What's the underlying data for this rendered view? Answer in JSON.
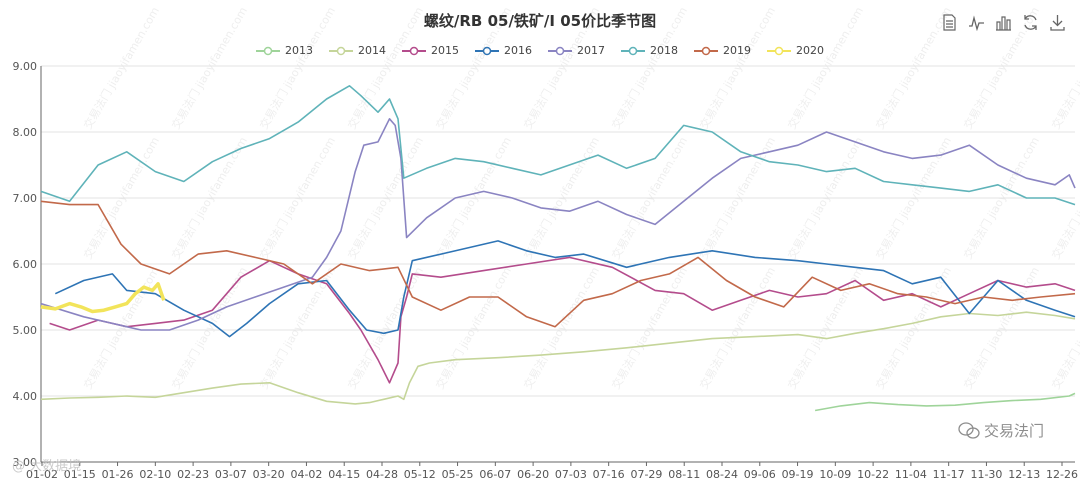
{
  "chart_data": {
    "type": "line",
    "title": "螺纹/RB 05/铁矿/I 05价比季节图",
    "xlabel": "",
    "ylabel": "",
    "ylim": [
      3.0,
      9.0
    ],
    "yticks": [
      "3.00",
      "4.00",
      "5.00",
      "6.00",
      "7.00",
      "8.00",
      "9.00"
    ],
    "ytick_values": [
      3,
      4,
      5,
      6,
      7,
      8,
      9
    ],
    "xticks": [
      "01-02",
      "01-15",
      "01-26",
      "02-10",
      "02-23",
      "03-07",
      "03-20",
      "04-02",
      "04-15",
      "04-28",
      "05-12",
      "05-25",
      "06-07",
      "06-20",
      "07-03",
      "07-16",
      "07-29",
      "08-11",
      "08-24",
      "09-06",
      "09-19",
      "10-09",
      "10-22",
      "11-04",
      "11-17",
      "11-30",
      "12-13",
      "12-26"
    ],
    "grid": true,
    "legend_position": "top-center",
    "series": [
      {
        "name": "2013",
        "color": "#9fd49a",
        "points": [
          [
            271,
            3.78
          ],
          [
            280,
            3.85
          ],
          [
            290,
            3.9
          ],
          [
            300,
            3.87
          ],
          [
            310,
            3.85
          ],
          [
            320,
            3.86
          ],
          [
            330,
            3.9
          ],
          [
            340,
            3.93
          ],
          [
            350,
            3.95
          ],
          [
            360,
            4.0
          ],
          [
            362,
            4.04
          ]
        ]
      },
      {
        "name": "2014",
        "color": "#c5d59a",
        "points": [
          [
            0,
            3.95
          ],
          [
            10,
            3.97
          ],
          [
            20,
            3.98
          ],
          [
            30,
            4.0
          ],
          [
            40,
            3.98
          ],
          [
            50,
            4.05
          ],
          [
            60,
            4.12
          ],
          [
            70,
            4.18
          ],
          [
            80,
            4.2
          ],
          [
            90,
            4.05
          ],
          [
            100,
            3.92
          ],
          [
            110,
            3.88
          ],
          [
            115,
            3.9
          ],
          [
            120,
            3.95
          ],
          [
            125,
            4.0
          ],
          [
            127,
            3.95
          ],
          [
            129,
            4.2
          ],
          [
            132,
            4.45
          ],
          [
            136,
            4.5
          ],
          [
            145,
            4.55
          ],
          [
            160,
            4.58
          ],
          [
            175,
            4.62
          ],
          [
            190,
            4.67
          ],
          [
            205,
            4.73
          ],
          [
            220,
            4.8
          ],
          [
            235,
            4.87
          ],
          [
            250,
            4.9
          ],
          [
            265,
            4.93
          ],
          [
            275,
            4.87
          ],
          [
            285,
            4.95
          ],
          [
            295,
            5.02
          ],
          [
            305,
            5.1
          ],
          [
            315,
            5.2
          ],
          [
            325,
            5.25
          ],
          [
            335,
            5.22
          ],
          [
            345,
            5.27
          ],
          [
            355,
            5.22
          ],
          [
            362,
            5.17
          ]
        ]
      },
      {
        "name": "2015",
        "color": "#b44c8c",
        "points": [
          [
            3,
            5.1
          ],
          [
            10,
            5.0
          ],
          [
            20,
            5.15
          ],
          [
            30,
            5.05
          ],
          [
            40,
            5.1
          ],
          [
            50,
            5.15
          ],
          [
            60,
            5.3
          ],
          [
            70,
            5.8
          ],
          [
            80,
            6.05
          ],
          [
            90,
            5.85
          ],
          [
            100,
            5.7
          ],
          [
            108,
            5.25
          ],
          [
            112,
            5.0
          ],
          [
            118,
            4.55
          ],
          [
            122,
            4.2
          ],
          [
            125,
            4.5
          ],
          [
            126,
            5.2
          ],
          [
            128,
            5.5
          ],
          [
            130,
            5.85
          ],
          [
            140,
            5.8
          ],
          [
            155,
            5.9
          ],
          [
            170,
            6.0
          ],
          [
            185,
            6.1
          ],
          [
            200,
            5.95
          ],
          [
            215,
            5.6
          ],
          [
            225,
            5.55
          ],
          [
            235,
            5.3
          ],
          [
            245,
            5.45
          ],
          [
            255,
            5.6
          ],
          [
            265,
            5.5
          ],
          [
            275,
            5.55
          ],
          [
            285,
            5.75
          ],
          [
            295,
            5.45
          ],
          [
            305,
            5.55
          ],
          [
            315,
            5.35
          ],
          [
            325,
            5.55
          ],
          [
            335,
            5.75
          ],
          [
            345,
            5.65
          ],
          [
            355,
            5.7
          ],
          [
            362,
            5.6
          ]
        ]
      },
      {
        "name": "2016",
        "color": "#2e74b5",
        "points": [
          [
            5,
            5.55
          ],
          [
            15,
            5.75
          ],
          [
            25,
            5.85
          ],
          [
            30,
            5.6
          ],
          [
            40,
            5.55
          ],
          [
            50,
            5.3
          ],
          [
            60,
            5.1
          ],
          [
            66,
            4.9
          ],
          [
            72,
            5.1
          ],
          [
            80,
            5.4
          ],
          [
            90,
            5.7
          ],
          [
            100,
            5.75
          ],
          [
            108,
            5.3
          ],
          [
            114,
            5.0
          ],
          [
            120,
            4.95
          ],
          [
            125,
            5.0
          ],
          [
            127,
            5.5
          ],
          [
            130,
            6.05
          ],
          [
            140,
            6.15
          ],
          [
            150,
            6.25
          ],
          [
            160,
            6.35
          ],
          [
            170,
            6.2
          ],
          [
            180,
            6.1
          ],
          [
            190,
            6.15
          ],
          [
            205,
            5.95
          ],
          [
            220,
            6.1
          ],
          [
            235,
            6.2
          ],
          [
            250,
            6.1
          ],
          [
            265,
            6.05
          ],
          [
            275,
            6.0
          ],
          [
            285,
            5.95
          ],
          [
            295,
            5.9
          ],
          [
            305,
            5.7
          ],
          [
            315,
            5.8
          ],
          [
            325,
            5.25
          ],
          [
            335,
            5.75
          ],
          [
            345,
            5.45
          ],
          [
            355,
            5.3
          ],
          [
            362,
            5.2
          ]
        ]
      },
      {
        "name": "2017",
        "color": "#8a84c2",
        "points": [
          [
            0,
            5.4
          ],
          [
            15,
            5.2
          ],
          [
            25,
            5.1
          ],
          [
            35,
            5.0
          ],
          [
            45,
            5.0
          ],
          [
            55,
            5.15
          ],
          [
            65,
            5.35
          ],
          [
            75,
            5.5
          ],
          [
            85,
            5.65
          ],
          [
            95,
            5.8
          ],
          [
            100,
            6.1
          ],
          [
            105,
            6.5
          ],
          [
            110,
            7.4
          ],
          [
            113,
            7.8
          ],
          [
            118,
            7.85
          ],
          [
            122,
            8.2
          ],
          [
            124,
            8.1
          ],
          [
            126,
            7.6
          ],
          [
            128,
            6.4
          ],
          [
            135,
            6.7
          ],
          [
            145,
            7.0
          ],
          [
            155,
            7.1
          ],
          [
            165,
            7.0
          ],
          [
            175,
            6.85
          ],
          [
            185,
            6.8
          ],
          [
            195,
            6.95
          ],
          [
            205,
            6.75
          ],
          [
            215,
            6.6
          ],
          [
            225,
            6.95
          ],
          [
            235,
            7.3
          ],
          [
            245,
            7.6
          ],
          [
            255,
            7.7
          ],
          [
            265,
            7.8
          ],
          [
            275,
            8.0
          ],
          [
            285,
            7.85
          ],
          [
            295,
            7.7
          ],
          [
            305,
            7.6
          ],
          [
            315,
            7.65
          ],
          [
            325,
            7.8
          ],
          [
            335,
            7.5
          ],
          [
            345,
            7.3
          ],
          [
            355,
            7.2
          ],
          [
            360,
            7.35
          ],
          [
            362,
            7.15
          ]
        ]
      },
      {
        "name": "2018",
        "color": "#5fb3b9",
        "points": [
          [
            0,
            7.1
          ],
          [
            10,
            6.95
          ],
          [
            20,
            7.5
          ],
          [
            30,
            7.7
          ],
          [
            40,
            7.4
          ],
          [
            50,
            7.25
          ],
          [
            60,
            7.55
          ],
          [
            70,
            7.75
          ],
          [
            80,
            7.9
          ],
          [
            90,
            8.15
          ],
          [
            100,
            8.5
          ],
          [
            108,
            8.7
          ],
          [
            112,
            8.55
          ],
          [
            118,
            8.3
          ],
          [
            122,
            8.5
          ],
          [
            125,
            8.2
          ],
          [
            127,
            7.3
          ],
          [
            135,
            7.45
          ],
          [
            145,
            7.6
          ],
          [
            155,
            7.55
          ],
          [
            165,
            7.45
          ],
          [
            175,
            7.35
          ],
          [
            185,
            7.5
          ],
          [
            195,
            7.65
          ],
          [
            205,
            7.45
          ],
          [
            215,
            7.6
          ],
          [
            225,
            8.1
          ],
          [
            235,
            8.0
          ],
          [
            245,
            7.7
          ],
          [
            255,
            7.55
          ],
          [
            265,
            7.5
          ],
          [
            275,
            7.4
          ],
          [
            285,
            7.45
          ],
          [
            295,
            7.25
          ],
          [
            305,
            7.2
          ],
          [
            315,
            7.15
          ],
          [
            325,
            7.1
          ],
          [
            335,
            7.2
          ],
          [
            345,
            7.0
          ],
          [
            355,
            7.0
          ],
          [
            362,
            6.9
          ]
        ]
      },
      {
        "name": "2019",
        "color": "#c2694a",
        "points": [
          [
            0,
            6.95
          ],
          [
            10,
            6.9
          ],
          [
            20,
            6.9
          ],
          [
            28,
            6.3
          ],
          [
            35,
            6.0
          ],
          [
            45,
            5.85
          ],
          [
            55,
            6.15
          ],
          [
            65,
            6.2
          ],
          [
            75,
            6.1
          ],
          [
            85,
            6.0
          ],
          [
            95,
            5.7
          ],
          [
            105,
            6.0
          ],
          [
            115,
            5.9
          ],
          [
            125,
            5.95
          ],
          [
            130,
            5.5
          ],
          [
            140,
            5.3
          ],
          [
            150,
            5.5
          ],
          [
            160,
            5.5
          ],
          [
            170,
            5.2
          ],
          [
            180,
            5.05
          ],
          [
            190,
            5.45
          ],
          [
            200,
            5.55
          ],
          [
            210,
            5.75
          ],
          [
            220,
            5.85
          ],
          [
            230,
            6.1
          ],
          [
            240,
            5.75
          ],
          [
            250,
            5.5
          ],
          [
            260,
            5.35
          ],
          [
            270,
            5.8
          ],
          [
            280,
            5.6
          ],
          [
            290,
            5.7
          ],
          [
            300,
            5.55
          ],
          [
            310,
            5.5
          ],
          [
            320,
            5.4
          ],
          [
            330,
            5.5
          ],
          [
            340,
            5.45
          ],
          [
            350,
            5.5
          ],
          [
            362,
            5.55
          ]
        ]
      },
      {
        "name": "2020",
        "color": "#f2e45a",
        "points": [
          [
            0,
            5.35
          ],
          [
            5,
            5.32
          ],
          [
            10,
            5.4
          ],
          [
            14,
            5.35
          ],
          [
            18,
            5.28
          ],
          [
            22,
            5.3
          ],
          [
            26,
            5.35
          ],
          [
            30,
            5.4
          ],
          [
            33,
            5.55
          ],
          [
            36,
            5.65
          ],
          [
            39,
            5.6
          ],
          [
            41,
            5.7
          ],
          [
            43,
            5.45
          ]
        ]
      }
    ]
  },
  "toolbox": {
    "icons": [
      "data-view-icon",
      "line-chart-icon",
      "bar-chart-icon",
      "restore-icon",
      "download-icon"
    ]
  },
  "watermark": {
    "badge_text": "交易法门",
    "left_text": "@ 大数据境",
    "diagonal_text": "交易法门 jiaoyifamen.com"
  }
}
